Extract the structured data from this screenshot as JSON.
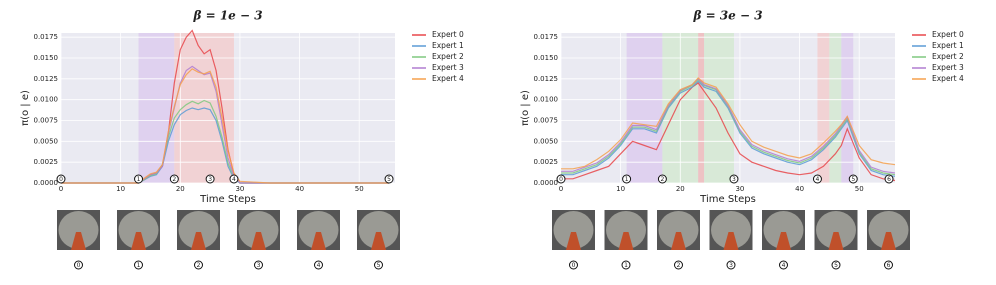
{
  "chart_data": [
    {
      "type": "line",
      "title": "β = 1e − 3",
      "xlabel": "Time Steps",
      "ylabel": "π(o | e)",
      "xlim": [
        0,
        56
      ],
      "ylim": [
        0,
        0.018
      ],
      "xticks": [
        0,
        10,
        20,
        30,
        40,
        50
      ],
      "yticks": [
        {
          "value": 0,
          "label": "0.0000"
        },
        {
          "value": 0.0025,
          "label": "0.0025"
        },
        {
          "value": 0.005,
          "label": "0.0050"
        },
        {
          "value": 0.0075,
          "label": "0.0075"
        },
        {
          "value": 0.01,
          "label": "0.0100"
        },
        {
          "value": 0.0125,
          "label": "0.0125"
        },
        {
          "value": 0.015,
          "label": "0.0150"
        },
        {
          "value": 0.0175,
          "label": "0.0175"
        }
      ],
      "grid": true,
      "x": [
        0,
        5,
        10,
        12,
        13,
        14,
        15,
        16,
        17,
        18,
        19,
        20,
        21,
        22,
        23,
        24,
        25,
        26,
        27,
        28,
        29,
        30,
        35,
        40,
        45,
        50,
        55
      ],
      "series": [
        {
          "name": "Expert 0",
          "color": "#e8474a",
          "values": [
            0,
            0,
            0,
            0,
            0,
            0.0005,
            0.001,
            0.0012,
            0.002,
            0.006,
            0.012,
            0.016,
            0.0175,
            0.0183,
            0.0165,
            0.0155,
            0.016,
            0.0135,
            0.009,
            0.004,
            0.001,
            0,
            0,
            0,
            0,
            0,
            0
          ]
        },
        {
          "name": "Expert 1",
          "color": "#5b9bd5",
          "values": [
            0,
            0,
            0,
            0,
            0,
            0.0004,
            0.0008,
            0.001,
            0.002,
            0.005,
            0.007,
            0.0082,
            0.0087,
            0.009,
            0.0088,
            0.009,
            0.0088,
            0.0075,
            0.005,
            0.002,
            0.0005,
            0,
            0,
            0,
            0,
            0,
            0
          ]
        },
        {
          "name": "Expert 2",
          "color": "#7fc97f",
          "values": [
            0,
            0,
            0,
            0,
            0,
            0.0004,
            0.0009,
            0.0011,
            0.0022,
            0.0055,
            0.0078,
            0.0088,
            0.0094,
            0.0098,
            0.0095,
            0.0099,
            0.0096,
            0.008,
            0.0055,
            0.0024,
            0.0006,
            0,
            0,
            0,
            0,
            0,
            0
          ]
        },
        {
          "name": "Expert 3",
          "color": "#b07cd0",
          "values": [
            0,
            0,
            0,
            0,
            0,
            0.0005,
            0.001,
            0.0012,
            0.002,
            0.006,
            0.009,
            0.012,
            0.0135,
            0.014,
            0.0135,
            0.013,
            0.0132,
            0.011,
            0.007,
            0.003,
            0.0008,
            0,
            0,
            0,
            0,
            0,
            0
          ]
        },
        {
          "name": "Expert 4",
          "color": "#f5a04c",
          "values": [
            0,
            0,
            0,
            0,
            0,
            0.0006,
            0.0011,
            0.0013,
            0.0022,
            0.0062,
            0.0092,
            0.0118,
            0.013,
            0.0137,
            0.0133,
            0.0131,
            0.0134,
            0.0115,
            0.0078,
            0.0038,
            0.0012,
            0.0002,
            0,
            0,
            0,
            0,
            0
          ]
        }
      ],
      "spans": [
        {
          "from": 13,
          "to": 19,
          "color": "#dccbee"
        },
        {
          "from": 19,
          "to": 29,
          "color": "#f3cccc"
        }
      ],
      "markers": [
        {
          "x": 0,
          "label": "0"
        },
        {
          "x": 13,
          "label": "1"
        },
        {
          "x": 19,
          "label": "2"
        },
        {
          "x": 25,
          "label": "3"
        },
        {
          "x": 29,
          "label": "4"
        },
        {
          "x": 55,
          "label": "5"
        }
      ]
    },
    {
      "type": "line",
      "title": "β = 3e − 3",
      "xlabel": "Time Steps",
      "ylabel": "π(o | e)",
      "xlim": [
        0,
        56
      ],
      "ylim": [
        0,
        0.018
      ],
      "xticks": [
        0,
        10,
        20,
        30,
        40,
        50
      ],
      "yticks": [
        {
          "value": 0,
          "label": "0.0000"
        },
        {
          "value": 0.0025,
          "label": "0.0025"
        },
        {
          "value": 0.005,
          "label": "0.0050"
        },
        {
          "value": 0.0075,
          "label": "0.0075"
        },
        {
          "value": 0.01,
          "label": "0.0100"
        },
        {
          "value": 0.0125,
          "label": "0.0125"
        },
        {
          "value": 0.015,
          "label": "0.0150"
        },
        {
          "value": 0.0175,
          "label": "0.0175"
        }
      ],
      "grid": true,
      "x": [
        0,
        2,
        4,
        6,
        8,
        10,
        12,
        14,
        16,
        18,
        20,
        22,
        23,
        24,
        26,
        28,
        30,
        32,
        34,
        36,
        38,
        40,
        42,
        44,
        46,
        47,
        48,
        50,
        52,
        54,
        56
      ],
      "series": [
        {
          "name": "Expert 0",
          "color": "#e8474a",
          "values": [
            0.0005,
            0.0005,
            0.001,
            0.0015,
            0.002,
            0.0035,
            0.005,
            0.0045,
            0.004,
            0.007,
            0.01,
            0.0115,
            0.012,
            0.011,
            0.009,
            0.006,
            0.0035,
            0.0025,
            0.002,
            0.0015,
            0.0012,
            0.001,
            0.0012,
            0.002,
            0.0035,
            0.0045,
            0.0065,
            0.003,
            0.001,
            0.0005,
            0.0003
          ]
        },
        {
          "name": "Expert 1",
          "color": "#5b9bd5",
          "values": [
            0.001,
            0.001,
            0.0015,
            0.002,
            0.003,
            0.0045,
            0.0065,
            0.0065,
            0.006,
            0.009,
            0.0108,
            0.0115,
            0.0122,
            0.0115,
            0.011,
            0.009,
            0.006,
            0.0042,
            0.0035,
            0.003,
            0.0025,
            0.0022,
            0.0028,
            0.004,
            0.0055,
            0.0065,
            0.0075,
            0.0035,
            0.0015,
            0.001,
            0.0008
          ]
        },
        {
          "name": "Expert 2",
          "color": "#7fc97f",
          "values": [
            0.0012,
            0.0012,
            0.0017,
            0.0022,
            0.0032,
            0.0047,
            0.0067,
            0.0067,
            0.0062,
            0.0092,
            0.011,
            0.0117,
            0.0124,
            0.0117,
            0.0112,
            0.0092,
            0.0062,
            0.0044,
            0.0037,
            0.0032,
            0.0027,
            0.0024,
            0.003,
            0.0042,
            0.0057,
            0.0067,
            0.0077,
            0.0037,
            0.0017,
            0.0012,
            0.001
          ]
        },
        {
          "name": "Expert 3",
          "color": "#b07cd0",
          "values": [
            0.0014,
            0.0014,
            0.0019,
            0.0024,
            0.0034,
            0.0049,
            0.0069,
            0.0069,
            0.0064,
            0.0093,
            0.0111,
            0.0118,
            0.0125,
            0.0118,
            0.0113,
            0.0093,
            0.0064,
            0.0046,
            0.0039,
            0.0034,
            0.0029,
            0.0026,
            0.0032,
            0.0044,
            0.0059,
            0.0069,
            0.0079,
            0.0039,
            0.0019,
            0.0014,
            0.0012
          ]
        },
        {
          "name": "Expert 4",
          "color": "#f5a04c",
          "values": [
            0.0017,
            0.0017,
            0.002,
            0.0028,
            0.0038,
            0.0052,
            0.0072,
            0.007,
            0.0068,
            0.0095,
            0.0112,
            0.0118,
            0.0126,
            0.012,
            0.0115,
            0.0095,
            0.007,
            0.005,
            0.0043,
            0.0038,
            0.0033,
            0.003,
            0.0035,
            0.0048,
            0.0062,
            0.007,
            0.008,
            0.0045,
            0.0028,
            0.0024,
            0.0022
          ]
        }
      ],
      "spans": [
        {
          "from": 11,
          "to": 17,
          "color": "#dccbee"
        },
        {
          "from": 17,
          "to": 23,
          "color": "#d3e8d0"
        },
        {
          "from": 23,
          "to": 24,
          "color": "#efb8b8"
        },
        {
          "from": 24,
          "to": 29,
          "color": "#d3e8d0"
        },
        {
          "from": 43,
          "to": 45,
          "color": "#f3cccc"
        },
        {
          "from": 45,
          "to": 47,
          "color": "#d3e8d0"
        },
        {
          "from": 47,
          "to": 49,
          "color": "#dccbee"
        }
      ],
      "markers": [
        {
          "x": 0,
          "label": "0"
        },
        {
          "x": 11,
          "label": "1"
        },
        {
          "x": 17,
          "label": "2"
        },
        {
          "x": 29,
          "label": "3"
        },
        {
          "x": 43,
          "label": "4"
        },
        {
          "x": 49,
          "label": "5"
        },
        {
          "x": 55,
          "label": "6"
        }
      ]
    }
  ]
}
